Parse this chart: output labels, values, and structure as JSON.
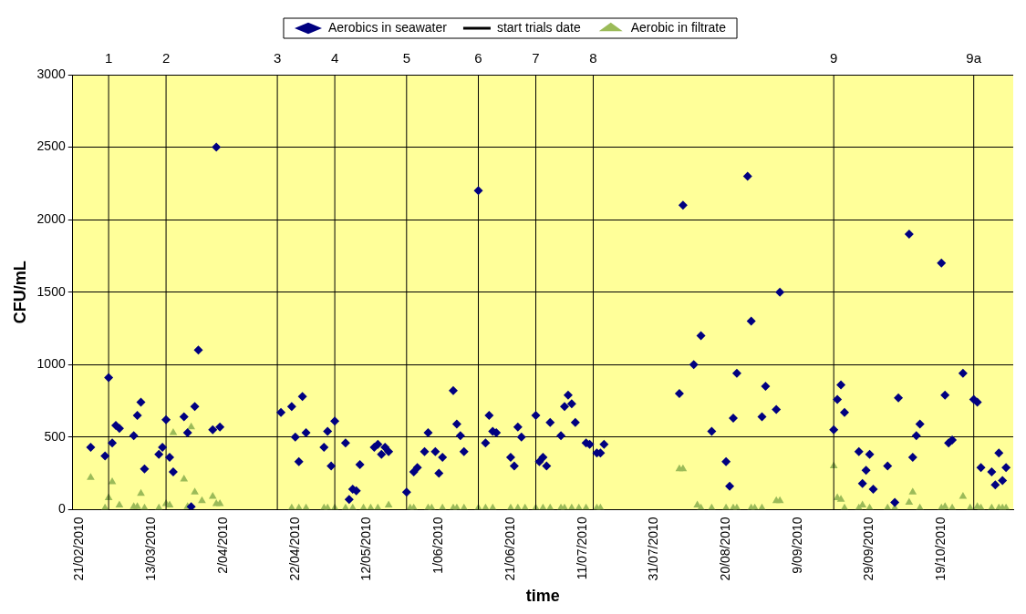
{
  "chart_data": {
    "type": "scatter",
    "xlabel": "time",
    "ylabel": "CFU/mL",
    "grid": "y",
    "legend": "top",
    "xlim": [
      "2010-02-19",
      "2010-11-08"
    ],
    "xticks": [
      {
        "value": "2010-02-21",
        "label": "21/02/2010"
      },
      {
        "value": "2010-03-13",
        "label": "13/03/2010"
      },
      {
        "value": "2010-04-02",
        "label": "2/04/2010"
      },
      {
        "value": "2010-04-22",
        "label": "22/04/2010"
      },
      {
        "value": "2010-05-12",
        "label": "12/05/2010"
      },
      {
        "value": "2010-06-01",
        "label": "1/06/2010"
      },
      {
        "value": "2010-06-21",
        "label": "21/06/2010"
      },
      {
        "value": "2010-07-11",
        "label": "11/07/2010"
      },
      {
        "value": "2010-07-31",
        "label": "31/07/2010"
      },
      {
        "value": "2010-08-20",
        "label": "20/08/2010"
      },
      {
        "value": "2010-09-09",
        "label": "9/09/2010"
      },
      {
        "value": "2010-09-29",
        "label": "29/09/2010"
      },
      {
        "value": "2010-10-19",
        "label": "19/10/2010"
      }
    ],
    "ylim": [
      0,
      3000
    ],
    "yticks": [
      0,
      500,
      1000,
      1500,
      2000,
      2500,
      3000
    ],
    "series": [
      {
        "name": "Aerobics in seawater",
        "marker": "diamond",
        "color": "#000080",
        "x": [
          "2010-02-24",
          "2010-02-28",
          "2010-03-01",
          "2010-03-02",
          "2010-03-03",
          "2010-03-04",
          "2010-03-08",
          "2010-03-09",
          "2010-03-10",
          "2010-03-11",
          "2010-03-15",
          "2010-03-16",
          "2010-03-17",
          "2010-03-18",
          "2010-03-19",
          "2010-03-22",
          "2010-03-23",
          "2010-03-24",
          "2010-03-25",
          "2010-03-26",
          "2010-03-30",
          "2010-03-31",
          "2010-04-01",
          "2010-04-18",
          "2010-04-21",
          "2010-04-22",
          "2010-04-23",
          "2010-04-24",
          "2010-04-25",
          "2010-04-30",
          "2010-05-01",
          "2010-05-02",
          "2010-05-03",
          "2010-05-06",
          "2010-05-07",
          "2010-05-08",
          "2010-05-09",
          "2010-05-10",
          "2010-05-14",
          "2010-05-15",
          "2010-05-16",
          "2010-05-17",
          "2010-05-18",
          "2010-05-23",
          "2010-05-25",
          "2010-05-26",
          "2010-05-28",
          "2010-05-29",
          "2010-05-31",
          "2010-06-01",
          "2010-06-02",
          "2010-06-05",
          "2010-06-06",
          "2010-06-07",
          "2010-06-08",
          "2010-06-12",
          "2010-06-14",
          "2010-06-15",
          "2010-06-16",
          "2010-06-17",
          "2010-06-21",
          "2010-06-22",
          "2010-06-23",
          "2010-06-24",
          "2010-06-28",
          "2010-06-29",
          "2010-06-30",
          "2010-07-01",
          "2010-07-02",
          "2010-07-05",
          "2010-07-06",
          "2010-07-07",
          "2010-07-08",
          "2010-07-09",
          "2010-07-12",
          "2010-07-13",
          "2010-07-15",
          "2010-07-16",
          "2010-07-17",
          "2010-08-07",
          "2010-08-08",
          "2010-08-11",
          "2010-08-13",
          "2010-08-16",
          "2010-08-20",
          "2010-08-21",
          "2010-08-22",
          "2010-08-23",
          "2010-08-26",
          "2010-08-27",
          "2010-08-30",
          "2010-08-31",
          "2010-09-03",
          "2010-09-04",
          "2010-09-19",
          "2010-09-20",
          "2010-09-21",
          "2010-09-22",
          "2010-09-26",
          "2010-09-27",
          "2010-09-28",
          "2010-09-29",
          "2010-09-30",
          "2010-10-04",
          "2010-10-06",
          "2010-10-07",
          "2010-10-10",
          "2010-10-11",
          "2010-10-12",
          "2010-10-13",
          "2010-10-19",
          "2010-10-20",
          "2010-10-21",
          "2010-10-22",
          "2010-10-25",
          "2010-10-28",
          "2010-10-29",
          "2010-10-30",
          "2010-11-02",
          "2010-11-03",
          "2010-11-04",
          "2010-11-05",
          "2010-11-06"
        ],
        "values": [
          430,
          370,
          910,
          460,
          580,
          560,
          510,
          650,
          740,
          280,
          380,
          430,
          620,
          360,
          260,
          640,
          530,
          20,
          710,
          1100,
          550,
          2500,
          570,
          670,
          710,
          500,
          330,
          780,
          530,
          430,
          540,
          300,
          610,
          460,
          70,
          140,
          130,
          310,
          430,
          450,
          380,
          430,
          400,
          120,
          260,
          290,
          400,
          530,
          400,
          250,
          360,
          820,
          590,
          510,
          400,
          2200,
          460,
          650,
          540,
          530,
          360,
          300,
          570,
          500,
          650,
          330,
          360,
          300,
          600,
          510,
          710,
          790,
          730,
          600,
          460,
          450,
          390,
          390,
          450,
          800,
          2100,
          1000,
          1200,
          540,
          330,
          160,
          630,
          940,
          2300,
          1300,
          640,
          850,
          690,
          1500,
          550,
          760,
          860,
          670,
          400,
          180,
          270,
          380,
          140,
          300,
          50,
          770,
          1900,
          360,
          510,
          590,
          1700,
          790,
          460,
          480,
          940,
          760,
          740,
          290,
          260,
          170,
          390,
          200,
          290
        ]
      },
      {
        "name": "start trials date",
        "type": "line",
        "marker": "none",
        "color": "#000000",
        "x": [
          "2010-03-01",
          "2010-03-01",
          null,
          "2010-03-17",
          "2010-03-17",
          null,
          "2010-04-17",
          "2010-04-17",
          null,
          "2010-05-03",
          "2010-05-03",
          null,
          "2010-05-23",
          "2010-05-23",
          null,
          "2010-06-12",
          "2010-06-12",
          null,
          "2010-06-28",
          "2010-06-28",
          null,
          "2010-07-14",
          "2010-07-14",
          null,
          "2010-09-19",
          "2010-09-19",
          null,
          "2010-10-28",
          "2010-10-28"
        ],
        "values": [
          0,
          3000,
          null,
          0,
          3000,
          null,
          0,
          3000,
          null,
          0,
          3000,
          null,
          0,
          3000,
          null,
          0,
          3000,
          null,
          0,
          3000,
          null,
          0,
          3000,
          null,
          0,
          3000,
          null,
          0,
          3000
        ]
      },
      {
        "name": "Aerobic in filtrate",
        "marker": "triangle",
        "color": "#9bbb59",
        "x": [
          "2010-02-24",
          "2010-02-28",
          "2010-03-01",
          "2010-03-02",
          "2010-03-04",
          "2010-03-08",
          "2010-03-09",
          "2010-03-10",
          "2010-03-11",
          "2010-03-15",
          "2010-03-17",
          "2010-03-18",
          "2010-03-19",
          "2010-03-22",
          "2010-03-23",
          "2010-03-24",
          "2010-03-25",
          "2010-03-27",
          "2010-03-30",
          "2010-03-31",
          "2010-04-01",
          "2010-04-21",
          "2010-04-23",
          "2010-04-25",
          "2010-04-30",
          "2010-05-01",
          "2010-05-03",
          "2010-05-06",
          "2010-05-08",
          "2010-05-11",
          "2010-05-13",
          "2010-05-15",
          "2010-05-18",
          "2010-05-24",
          "2010-05-25",
          "2010-05-29",
          "2010-05-30",
          "2010-06-02",
          "2010-06-05",
          "2010-06-06",
          "2010-06-08",
          "2010-06-12",
          "2010-06-14",
          "2010-06-16",
          "2010-06-21",
          "2010-06-23",
          "2010-06-25",
          "2010-06-28",
          "2010-06-30",
          "2010-07-02",
          "2010-07-05",
          "2010-07-06",
          "2010-07-08",
          "2010-07-10",
          "2010-07-12",
          "2010-07-15",
          "2010-07-16",
          "2010-08-07",
          "2010-08-08",
          "2010-08-12",
          "2010-08-13",
          "2010-08-16",
          "2010-08-20",
          "2010-08-22",
          "2010-08-23",
          "2010-08-27",
          "2010-08-28",
          "2010-08-30",
          "2010-09-03",
          "2010-09-04",
          "2010-09-19",
          "2010-09-20",
          "2010-09-21",
          "2010-09-22",
          "2010-09-26",
          "2010-09-27",
          "2010-09-29",
          "2010-10-04",
          "2010-10-06",
          "2010-10-10",
          "2010-10-11",
          "2010-10-13",
          "2010-10-19",
          "2010-10-20",
          "2010-10-22",
          "2010-10-25",
          "2010-10-27",
          "2010-10-29",
          "2010-10-30",
          "2010-11-02",
          "2010-11-04",
          "2010-11-05",
          "2010-11-06"
        ],
        "values": [
          220,
          10,
          80,
          190,
          30,
          20,
          20,
          110,
          10,
          10,
          40,
          30,
          530,
          210,
          20,
          570,
          120,
          60,
          90,
          40,
          40,
          10,
          10,
          10,
          10,
          10,
          10,
          10,
          10,
          10,
          10,
          10,
          30,
          10,
          10,
          10,
          10,
          10,
          10,
          10,
          10,
          10,
          10,
          10,
          10,
          10,
          10,
          10,
          10,
          10,
          10,
          10,
          10,
          10,
          10,
          10,
          10,
          280,
          280,
          30,
          10,
          10,
          10,
          10,
          10,
          10,
          10,
          10,
          60,
          60,
          300,
          80,
          70,
          10,
          10,
          30,
          10,
          10,
          10,
          50,
          120,
          10,
          10,
          20,
          10,
          90,
          10,
          20,
          10,
          10,
          10,
          10,
          10
        ]
      }
    ],
    "annotations": [
      {
        "text": "1",
        "x": "2010-03-01",
        "y": 3000
      },
      {
        "text": "2",
        "x": "2010-03-17",
        "y": 3000
      },
      {
        "text": "3",
        "x": "2010-04-17",
        "y": 3000
      },
      {
        "text": "4",
        "x": "2010-05-03",
        "y": 3000
      },
      {
        "text": "5",
        "x": "2010-05-23",
        "y": 3000
      },
      {
        "text": "6",
        "x": "2010-06-12",
        "y": 3000
      },
      {
        "text": "7",
        "x": "2010-06-28",
        "y": 3000
      },
      {
        "text": "8",
        "x": "2010-07-14",
        "y": 3000
      },
      {
        "text": "9",
        "x": "2010-09-19",
        "y": 3000
      },
      {
        "text": "9a",
        "x": "2010-10-28",
        "y": 3000
      }
    ]
  }
}
